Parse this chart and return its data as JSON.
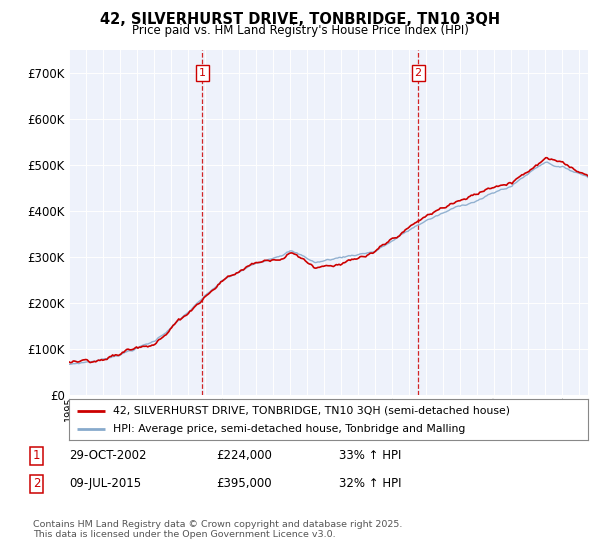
{
  "title": "42, SILVERHURST DRIVE, TONBRIDGE, TN10 3QH",
  "subtitle": "Price paid vs. HM Land Registry's House Price Index (HPI)",
  "legend_line1": "42, SILVERHURST DRIVE, TONBRIDGE, TN10 3QH (semi-detached house)",
  "legend_line2": "HPI: Average price, semi-detached house, Tonbridge and Malling",
  "footnote": "Contains HM Land Registry data © Crown copyright and database right 2025.\nThis data is licensed under the Open Government Licence v3.0.",
  "transaction1_date": "29-OCT-2002",
  "transaction1_price": "£224,000",
  "transaction1_hpi": "33% ↑ HPI",
  "transaction2_date": "09-JUL-2015",
  "transaction2_price": "£395,000",
  "transaction2_hpi": "32% ↑ HPI",
  "vline1_x": 2002.83,
  "vline2_x": 2015.52,
  "red_color": "#cc0000",
  "blue_color": "#88aacc",
  "vline_color": "#cc0000",
  "background_color": "#eef2fb",
  "ylim_min": 0,
  "ylim_max": 750000,
  "xlim_min": 1995,
  "xlim_max": 2025.5,
  "hpi_base_1995": 65000,
  "hpi_base_2025": 420000,
  "red_at_sale1": 224000,
  "red_at_sale2": 395000,
  "sale1_year": 2002.83,
  "sale2_year": 2015.52
}
